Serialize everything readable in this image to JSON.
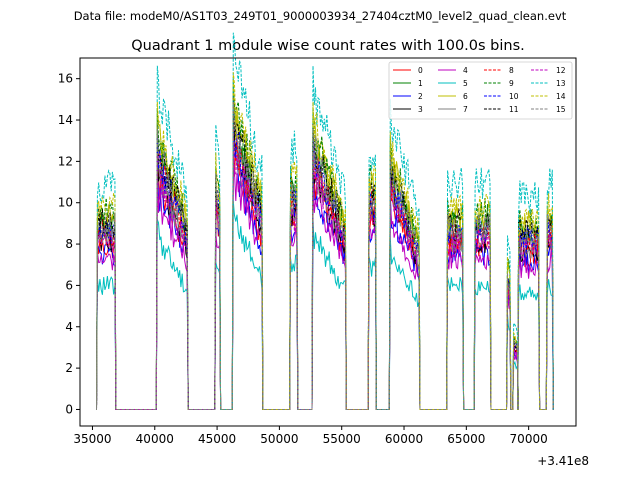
{
  "chart_data": {
    "type": "line",
    "suptitle": "Data file: modeM0/AS1T03_249T01_9000003934_27404cztM0_level2_quad_clean.evt",
    "title": "Quadrant 1 module wise count rates with 100.0s bins.",
    "xlabel": "",
    "ylabel": "",
    "x_offset_label": "+3.41e8",
    "xlim": [
      34000,
      73800
    ],
    "ylim": [
      -0.8,
      17
    ],
    "xticks": [
      35000,
      40000,
      45000,
      50000,
      55000,
      60000,
      65000,
      70000
    ],
    "xtick_labels": [
      "35000",
      "40000",
      "45000",
      "50000",
      "55000",
      "60000",
      "65000",
      "70000"
    ],
    "yticks": [
      0,
      2,
      4,
      6,
      8,
      10,
      12,
      14,
      16
    ],
    "ytick_labels": [
      "0",
      "2",
      "4",
      "6",
      "8",
      "10",
      "12",
      "14",
      "16"
    ],
    "legend_position": "top-right",
    "legend": [
      {
        "label": "0",
        "color": "#ff0000",
        "dash": "solid"
      },
      {
        "label": "1",
        "color": "#008000",
        "dash": "solid"
      },
      {
        "label": "2",
        "color": "#0000ff",
        "dash": "solid"
      },
      {
        "label": "3",
        "color": "#000000",
        "dash": "solid"
      },
      {
        "label": "4",
        "color": "#bf00bf",
        "dash": "solid"
      },
      {
        "label": "5",
        "color": "#00bfbf",
        "dash": "solid"
      },
      {
        "label": "6",
        "color": "#bfbf00",
        "dash": "solid"
      },
      {
        "label": "7",
        "color": "#808080",
        "dash": "solid"
      },
      {
        "label": "8",
        "color": "#ff0000",
        "dash": "dashed"
      },
      {
        "label": "9",
        "color": "#008000",
        "dash": "dashed"
      },
      {
        "label": "10",
        "color": "#0000ff",
        "dash": "dashed"
      },
      {
        "label": "11",
        "color": "#000000",
        "dash": "dashed"
      },
      {
        "label": "12",
        "color": "#bf00bf",
        "dash": "dashed"
      },
      {
        "label": "13",
        "color": "#00bfbf",
        "dash": "dashed"
      },
      {
        "label": "14",
        "color": "#bfbf00",
        "dash": "dashed"
      },
      {
        "label": "15",
        "color": "#808080",
        "dash": "dashed"
      }
    ],
    "active_intervals": [
      {
        "start": 35400,
        "end": 36800,
        "peak_level": 9.5,
        "shape": "flat"
      },
      {
        "start": 40200,
        "end": 42600,
        "peak_level": 13.5,
        "shape": "decay"
      },
      {
        "start": 44900,
        "end": 45200,
        "peak_level": 11.5,
        "shape": "spike"
      },
      {
        "start": 46300,
        "end": 48600,
        "peak_level": 14.8,
        "shape": "decay"
      },
      {
        "start": 50900,
        "end": 51400,
        "peak_level": 11.0,
        "shape": "flat"
      },
      {
        "start": 52700,
        "end": 55300,
        "peak_level": 13.5,
        "shape": "decay"
      },
      {
        "start": 57200,
        "end": 57700,
        "peak_level": 11.0,
        "shape": "flat"
      },
      {
        "start": 58900,
        "end": 61200,
        "peak_level": 12.2,
        "shape": "decay"
      },
      {
        "start": 63500,
        "end": 64700,
        "peak_level": 9.5,
        "shape": "flat"
      },
      {
        "start": 65700,
        "end": 66900,
        "peak_level": 9.5,
        "shape": "flat"
      },
      {
        "start": 68300,
        "end": 68500,
        "peak_level": 7.0,
        "shape": "spike"
      },
      {
        "start": 68800,
        "end": 69100,
        "peak_level": 3.5,
        "shape": "spike"
      },
      {
        "start": 69200,
        "end": 70800,
        "peak_level": 9.0,
        "shape": "flat"
      },
      {
        "start": 71500,
        "end": 71900,
        "peak_level": 9.5,
        "shape": "flat"
      }
    ],
    "module_scale": [
      0.83,
      0.94,
      0.79,
      0.86,
      0.76,
      0.63,
      0.98,
      0.87,
      0.9,
      1.0,
      0.91,
      0.95,
      0.85,
      1.14,
      1.02,
      0.93
    ]
  }
}
